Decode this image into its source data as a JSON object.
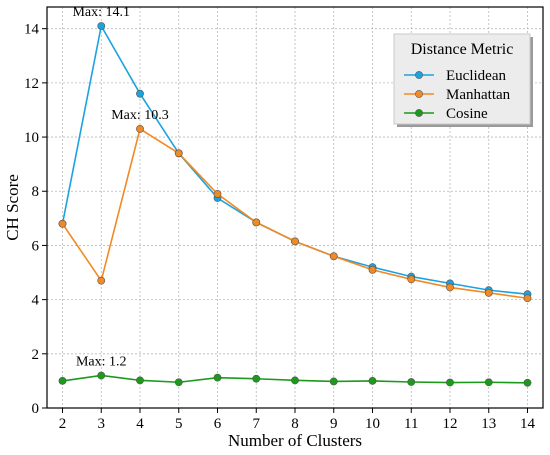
{
  "chart_data": {
    "type": "line",
    "xlabel": "Number of Clusters",
    "ylabel": "CH Score",
    "x": [
      2,
      3,
      4,
      5,
      6,
      7,
      8,
      9,
      10,
      11,
      12,
      13,
      14
    ],
    "xlim": [
      1.6,
      14.4
    ],
    "ylim": [
      0,
      14.8
    ],
    "xticks": [
      2,
      3,
      4,
      5,
      6,
      7,
      8,
      9,
      10,
      11,
      12,
      13,
      14
    ],
    "yticks": [
      0,
      2,
      4,
      6,
      8,
      10,
      12,
      14
    ],
    "grid": true,
    "legend": {
      "title": "Distance Metric",
      "placement": "top-right"
    },
    "series": [
      {
        "name": "Euclidean",
        "color": "#1ba3e0",
        "values": [
          6.8,
          14.1,
          11.6,
          9.4,
          7.75,
          6.85,
          6.15,
          5.6,
          5.2,
          4.85,
          4.6,
          4.35,
          4.2
        ]
      },
      {
        "name": "Manhattan",
        "color": "#f28a24",
        "values": [
          6.8,
          4.7,
          10.3,
          9.4,
          7.9,
          6.85,
          6.15,
          5.6,
          5.1,
          4.75,
          4.45,
          4.25,
          4.05
        ]
      },
      {
        "name": "Cosine",
        "color": "#1c9a1c",
        "values": [
          1.0,
          1.2,
          1.02,
          0.95,
          1.12,
          1.08,
          1.02,
          0.98,
          1.0,
          0.96,
          0.94,
          0.95,
          0.93
        ]
      }
    ],
    "annotations": [
      {
        "text": "Max: 14.1",
        "x": 3,
        "y": 14.1
      },
      {
        "text": "Max: 10.3",
        "x": 4,
        "y": 10.3
      },
      {
        "text": "Max: 1.2",
        "x": 3,
        "y": 1.2
      }
    ]
  }
}
